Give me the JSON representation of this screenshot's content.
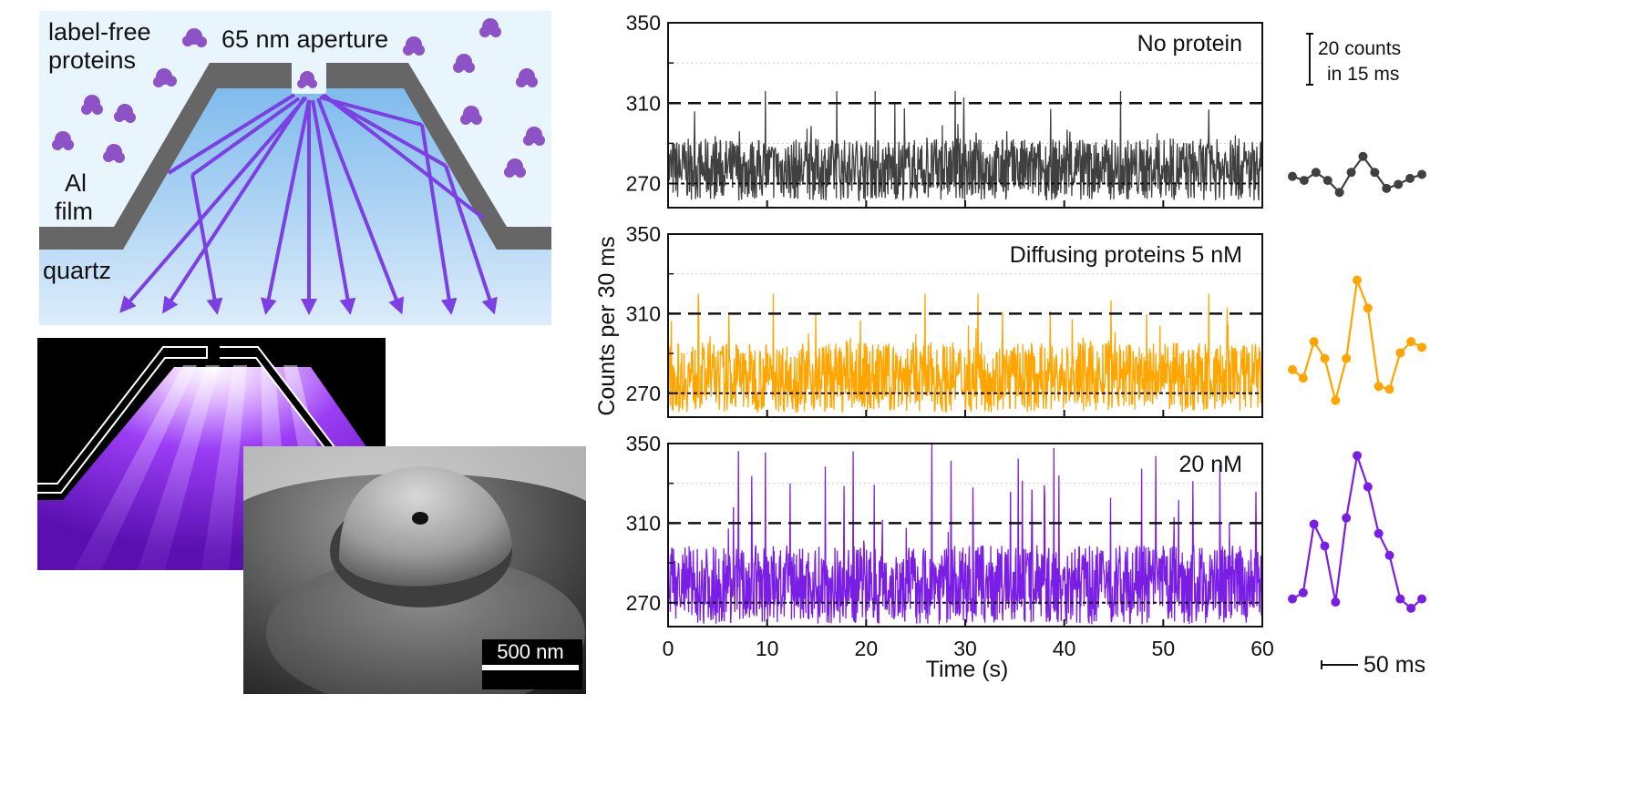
{
  "schematic": {
    "label_proteins_1": "label-free",
    "label_proteins_2": "proteins",
    "label_aperture": "65 nm aperture",
    "label_film_1": "Al",
    "label_film_2": "film",
    "label_quartz": "quartz"
  },
  "sem": {
    "scale_label": "500 nm"
  },
  "colors": {
    "no_protein": "#404040",
    "diffusing_5nM": "#ffa500",
    "diffusing_20nM": "#7a1ee6",
    "light_rays": "#7b3fe4",
    "film": "#666666"
  },
  "traces_axes": {
    "ylabel": "Counts per 30 ms",
    "xlabel": "Time (s)"
  },
  "insets": {
    "count_scale_1": "20 counts",
    "count_scale_2": "in 15 ms",
    "time_scale": "50 ms"
  },
  "chart_data": [
    {
      "type": "line",
      "title": "No protein",
      "color": "#404040",
      "xlabel": "Time (s)",
      "ylabel": "Counts per 30 ms",
      "xlim": [
        0,
        60
      ],
      "ylim": [
        258,
        350
      ],
      "xticks": [
        0,
        10,
        20,
        30,
        40,
        50,
        60
      ],
      "yticks": [
        270,
        310,
        350
      ],
      "threshold_lines": [
        310,
        270
      ],
      "series": [
        {
          "baseline": 270,
          "noise_amplitude": 14,
          "max_peak": 316
        }
      ]
    },
    {
      "type": "line",
      "title": "Diffusing proteins 5 nM",
      "color": "#ffa500",
      "xlabel": "Time (s)",
      "ylabel": "Counts per 30 ms",
      "xlim": [
        0,
        60
      ],
      "ylim": [
        258,
        350
      ],
      "xticks": [
        0,
        10,
        20,
        30,
        40,
        50,
        60
      ],
      "yticks": [
        270,
        310,
        350
      ],
      "threshold_lines": [
        310,
        270
      ],
      "series": [
        {
          "baseline": 270,
          "noise_amplitude": 16,
          "max_peak": 320
        }
      ]
    },
    {
      "type": "line",
      "title": "20 nM",
      "color": "#7a1ee6",
      "xlabel": "Time (s)",
      "ylabel": "Counts per 30 ms",
      "xlim": [
        0,
        60
      ],
      "ylim": [
        258,
        350
      ],
      "xticks": [
        0,
        10,
        20,
        30,
        40,
        50,
        60
      ],
      "yticks": [
        270,
        310,
        350
      ],
      "threshold_lines": [
        310,
        270
      ],
      "series": [
        {
          "baseline": 270,
          "noise_amplitude": 18,
          "max_peak": 350
        }
      ]
    },
    {
      "type": "line",
      "title": "",
      "color": "#404040",
      "series": [
        {
          "values": [
            270,
            268,
            272,
            268,
            262,
            272,
            280,
            272,
            264,
            266,
            269,
            271
          ]
        }
      ]
    },
    {
      "type": "line",
      "title": "",
      "color": "#ffa500",
      "series": [
        {
          "values": [
            274,
            271,
            284,
            278,
            263,
            278,
            306,
            296,
            268,
            267,
            280,
            284,
            282
          ]
        }
      ]
    },
    {
      "type": "line",
      "title": "",
      "color": "#7a1ee6",
      "series": [
        {
          "values": [
            266,
            268,
            290,
            283,
            265,
            292,
            312,
            302,
            287,
            280,
            266,
            263,
            266
          ]
        }
      ]
    }
  ]
}
